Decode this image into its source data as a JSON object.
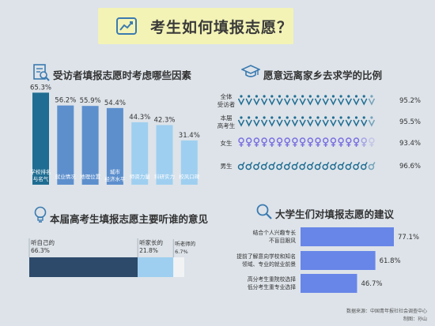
{
  "title": "考生如何填报志愿？",
  "icons": {
    "title": "trend-chart-icon",
    "s1": "search-document-icon",
    "s2": "graduation-cap-icon",
    "s3": "lightbulb-icon",
    "s4": "magnifier-icon"
  },
  "colors": {
    "bg": "#dde3e9",
    "titleBg": "#f3f3b6",
    "dark": "#1f6d92",
    "mid": "#5d8fcd",
    "light": "#9fcff0",
    "navy": "#2d4a6b",
    "purple": "#7a6fe0",
    "blue": "#6886e8"
  },
  "sections": {
    "s1": "受访者填报志愿时考虑哪些因素",
    "s2": "愿意远离家乡去求学的比例",
    "s3": "本届高考生填报志愿主要听谁的意见",
    "s4": "大学生们对填报志愿的建议"
  },
  "chart_data": [
    {
      "type": "bar",
      "categories": [
        "学校排名与名气",
        "就业情况",
        "地理位置",
        "城市经济水平",
        "师资力量",
        "科研实力",
        "校风口碑"
      ],
      "values": [
        65.3,
        56.2,
        55.9,
        54.4,
        44.3,
        42.3,
        31.4
      ],
      "labels": [
        "65.3%",
        "56.2%",
        "55.9%",
        "54.4%",
        "44.3%",
        "42.3%",
        "31.4%"
      ],
      "ylim": [
        0,
        70
      ]
    },
    {
      "type": "bar",
      "categories": [
        "全体受访者",
        "本届高考生",
        "女生",
        "男生"
      ],
      "values": [
        95.2,
        95.5,
        93.4,
        96.6
      ],
      "labels": [
        "95.2%",
        "95.5%",
        "93.4%",
        "96.6%"
      ],
      "xlim": [
        0,
        100
      ]
    },
    {
      "type": "bar",
      "stacked": true,
      "categories": [
        "听自己的",
        "听家长的",
        "听老师的"
      ],
      "values": [
        66.3,
        21.8,
        6.7
      ],
      "labels": [
        "66.3%",
        "21.8%",
        "6.7%"
      ]
    },
    {
      "type": "bar",
      "orientation": "horizontal",
      "categories": [
        "结合个人兴趣专长不盲目跟风",
        "提前了解意向学校和知名领域、专业的就业前景",
        "高分考生重院校选择低分考生重专业选择"
      ],
      "lines": [
        [
          "结合个人兴趣专长",
          "不盲目跟风"
        ],
        [
          "提前了解意向学校和知名",
          "领域、专业的就业前景"
        ],
        [
          "高分考生重院校选择",
          "低分考生重专业选择"
        ]
      ],
      "values": [
        77.1,
        61.8,
        46.7
      ],
      "labels": [
        "77.1%",
        "61.8%",
        "46.7%"
      ],
      "xlim": [
        0,
        100
      ]
    }
  ],
  "footer": {
    "source": "数据来源：中国青年报社社会调查中心",
    "author": "制图：孙山"
  }
}
